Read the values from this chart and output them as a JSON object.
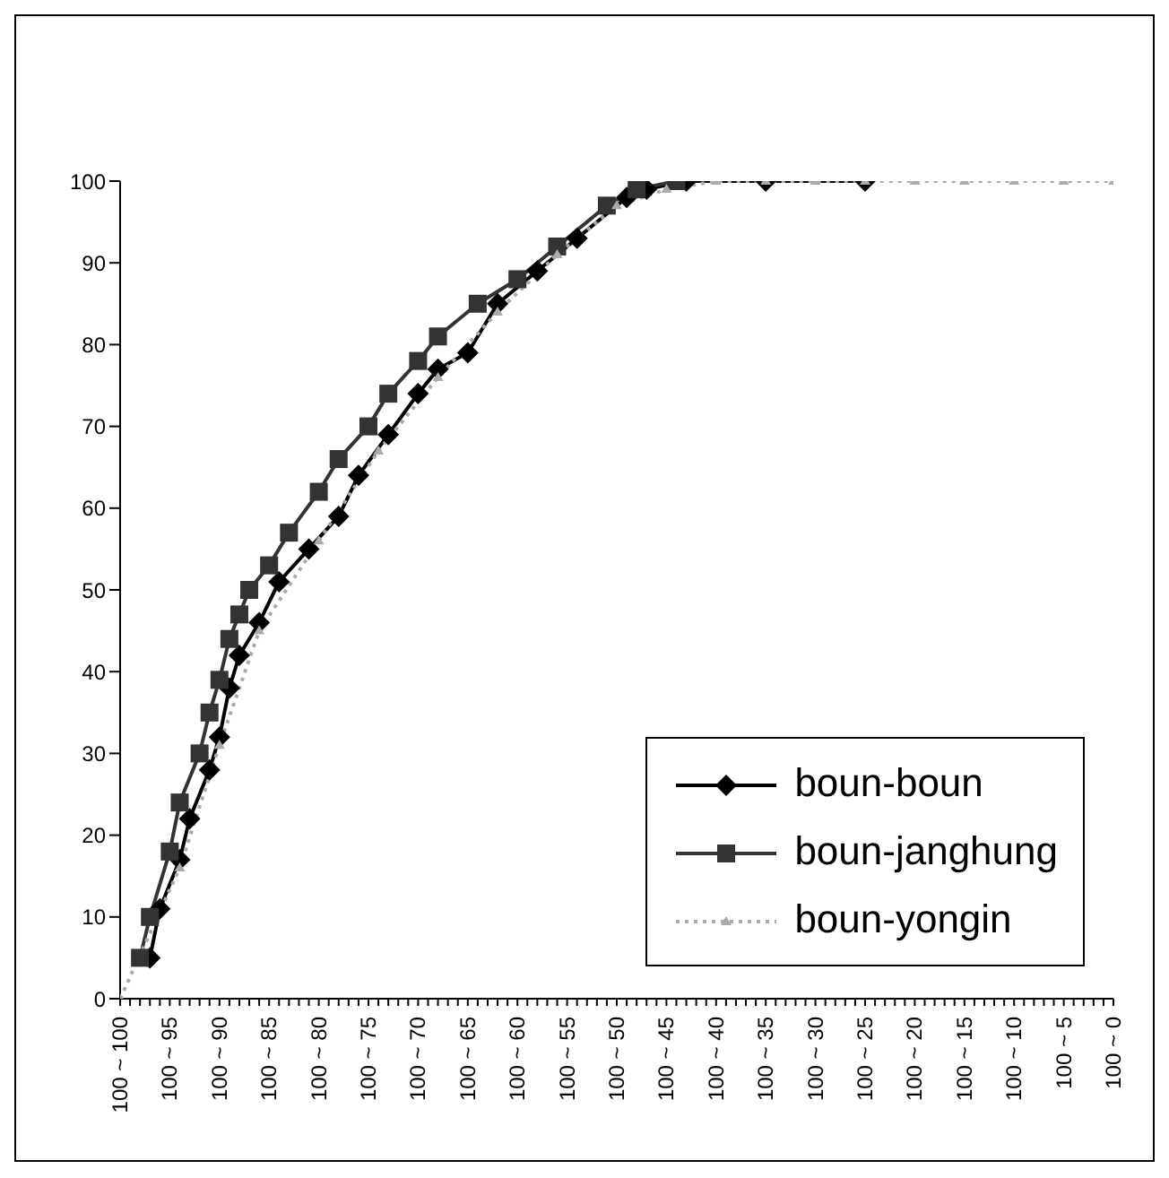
{
  "chart_data": {
    "type": "line",
    "categories": [
      "100 ~ 100",
      null,
      null,
      null,
      null,
      "100 ~ 95",
      null,
      null,
      null,
      null,
      "100 ~ 90",
      null,
      null,
      null,
      null,
      "100 ~ 85",
      null,
      null,
      null,
      null,
      "100 ~ 80",
      null,
      null,
      null,
      null,
      "100 ~ 75",
      null,
      null,
      null,
      null,
      "100 ~ 70",
      null,
      null,
      null,
      null,
      "100 ~ 65",
      null,
      null,
      null,
      null,
      "100 ~ 60",
      null,
      null,
      null,
      null,
      "100 ~ 55",
      null,
      null,
      null,
      null,
      "100 ~ 50",
      null,
      null,
      null,
      null,
      "100 ~ 45",
      null,
      null,
      null,
      null,
      "100 ~ 40",
      null,
      null,
      null,
      null,
      "100 ~ 35",
      null,
      null,
      null,
      null,
      "100 ~ 30",
      null,
      null,
      null,
      null,
      "100 ~ 25",
      null,
      null,
      null,
      null,
      "100 ~ 20",
      null,
      null,
      null,
      null,
      "100 ~ 15",
      null,
      null,
      null,
      null,
      "100 ~ 10",
      null,
      null,
      null,
      null,
      "100 ~ 5",
      null,
      null,
      null,
      null,
      "100 ~ 0"
    ],
    "ylim": [
      0,
      100
    ],
    "yticks": [
      0,
      10,
      20,
      30,
      40,
      50,
      60,
      70,
      80,
      90,
      100
    ],
    "legend": "bottom right",
    "series": [
      {
        "name": "boun-boun",
        "color": "#000000",
        "marker": "diamond",
        "line_style": "solid",
        "values": [
          null,
          null,
          null,
          5,
          11,
          null,
          17,
          22,
          null,
          28,
          32,
          38,
          42,
          null,
          46,
          null,
          51,
          null,
          null,
          55,
          null,
          null,
          59,
          null,
          64,
          null,
          null,
          69,
          null,
          null,
          74,
          null,
          77,
          null,
          null,
          79,
          null,
          null,
          85,
          null,
          null,
          null,
          89,
          null,
          null,
          null,
          93,
          null,
          null,
          null,
          null,
          98,
          null,
          99,
          null,
          null,
          null,
          100,
          null,
          null,
          null,
          null,
          null,
          null,
          null,
          100,
          null,
          null,
          null,
          null,
          null,
          null,
          null,
          null,
          null,
          100,
          null,
          null,
          null,
          null,
          null,
          null,
          null,
          null,
          null,
          null,
          null,
          null,
          null,
          null,
          null,
          null,
          null,
          null,
          null,
          null,
          null,
          null,
          null,
          null,
          null
        ]
      },
      {
        "name": "boun-janghung",
        "color": "#333333",
        "marker": "square",
        "line_style": "solid",
        "values": [
          null,
          null,
          5,
          10,
          null,
          18,
          24,
          null,
          30,
          35,
          39,
          44,
          47,
          50,
          null,
          53,
          null,
          57,
          null,
          null,
          62,
          null,
          66,
          null,
          null,
          70,
          null,
          74,
          null,
          null,
          78,
          null,
          81,
          null,
          null,
          null,
          85,
          null,
          null,
          null,
          88,
          null,
          null,
          null,
          92,
          null,
          null,
          null,
          null,
          97,
          null,
          null,
          99,
          null,
          null,
          null,
          100,
          null,
          null,
          null,
          null,
          null,
          null,
          null,
          null,
          null,
          null,
          null,
          null,
          null,
          null,
          null,
          null,
          null,
          null,
          null,
          null,
          null,
          null,
          null,
          null,
          null,
          null,
          null,
          null,
          null,
          null,
          null,
          null,
          null,
          null,
          null,
          null,
          null,
          null,
          null,
          null,
          null,
          null,
          null,
          null
        ]
      },
      {
        "name": "boun-yongin",
        "color": "#aaaaaa",
        "marker": "triangle",
        "line_style": "dotted",
        "values": [
          0,
          null,
          null,
          null,
          null,
          null,
          16,
          null,
          null,
          null,
          31,
          null,
          null,
          null,
          45,
          null,
          null,
          null,
          null,
          null,
          56,
          null,
          null,
          null,
          null,
          null,
          67,
          null,
          null,
          null,
          null,
          null,
          76,
          null,
          null,
          null,
          null,
          null,
          84,
          null,
          null,
          null,
          null,
          null,
          91,
          null,
          null,
          null,
          null,
          null,
          97,
          null,
          null,
          null,
          null,
          99,
          null,
          null,
          null,
          null,
          100,
          null,
          null,
          null,
          null,
          100,
          null,
          null,
          null,
          null,
          100,
          null,
          null,
          null,
          null,
          100,
          null,
          null,
          null,
          null,
          100,
          null,
          null,
          null,
          null,
          100,
          null,
          null,
          null,
          null,
          100,
          null,
          null,
          null,
          null,
          100,
          null,
          null,
          null,
          null,
          100
        ]
      }
    ]
  }
}
